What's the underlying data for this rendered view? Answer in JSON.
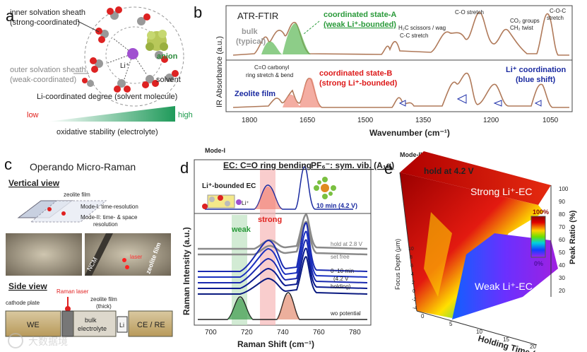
{
  "panel_a": {
    "label": "a",
    "inner_sheath_l1": "inner solvation sheath",
    "inner_sheath_l2": "(strong-coordinated)",
    "outer_sheath_l1": "outer solvation sheath",
    "outer_sheath_l2": "(weak-coordinated)",
    "anion": "anion",
    "li_ion": "Li⁺",
    "solvent": "solvent",
    "coord_degree": "Li-coordinated degree (solvent molecule)",
    "low": "low",
    "high": "high",
    "oxidative": "oxidative stability (electrolyte)",
    "colors": {
      "low": "#e0201c",
      "high": "#1a9a4a"
    }
  },
  "panel_b": {
    "label": "b",
    "title": "ATR-FTIR",
    "bulk_l1": "bulk",
    "bulk_l2": "(typical)",
    "state_a_l1": "coordinated state-A",
    "state_a_l2": "(weak Li⁺-bounded)",
    "state_b_l1": "coordinated state-B",
    "state_b_l2": "(strong Li⁺-bounded)",
    "co_carbonyl_l1": "C=O carbonyl",
    "co_carbonyl_l2": "ring stretch & bend",
    "h2c_l1": "H₂C scissors / wag",
    "h2c_l2": "C-C stretch",
    "co_stretch": "C-O stretch",
    "co2_l1": "CO₂ groups",
    "co2_l2": "CH₂ twist",
    "coc_l1": "C-O-C",
    "coc_l2": "stretch",
    "li_coord_l1": "Li⁺ coordination",
    "li_coord_l2": "(blue shift)",
    "zeolite_film": "Zeolite film",
    "ylabel": "IR Absorbance (a.u.)",
    "xlabel": "Wavenumber (cm⁻¹)",
    "ticks": [
      "1800",
      "1650",
      "1500",
      "1350",
      "1200",
      "1050"
    ]
  },
  "panel_c": {
    "label": "c",
    "title": "Operando Micro-Raman",
    "vertical_view": "Vertical view",
    "zeolite_film": "zeolite film",
    "cathode": "cathode",
    "mode1": "Mode-I: time-resolution",
    "mode2_l1": "Mode-II: time- & space",
    "mode2_l2": "resolution",
    "ncm": "NCM",
    "laser": "laser",
    "zeolite_film_photo": "zeolite film",
    "side_view": "Side view",
    "raman_laser": "Raman laser",
    "cathode_plate": "cathode plate",
    "zeolite_thick_l1": "zeolite film",
    "zeolite_thick_l2": "(thick)",
    "we": "WE",
    "bulk_l1": "bulk",
    "bulk_l2": "electrolyte",
    "li": "Li",
    "ce_re": "CE / RE"
  },
  "panel_d": {
    "label": "d",
    "mode": "Mode-I",
    "ec_header": "EC: C=O ring bending",
    "pf6_header": "PF₆⁻: sym. vib. (A₁g)",
    "li_bounded": "Li⁺-bounded EC",
    "li_label": "Li⁺",
    "strong": "strong",
    "weak": "weak",
    "t10": "10 min (4.2 V)",
    "hold28": "hold at 2.8 V",
    "setfree": "set free",
    "hold_l1": "0~10 min",
    "hold_l2": "(4.2 V",
    "hold_l3": "holding)",
    "wopotential": "wo potential",
    "ylabel": "Raman Intensity (a.u.)",
    "xlabel": "Raman Shift (cm⁻¹)",
    "ticks": [
      "700",
      "720",
      "740",
      "760",
      "780"
    ]
  },
  "panel_e": {
    "label": "e",
    "mode": "Mode-II",
    "hold": "hold at 4.2 V",
    "strong": "Strong Li⁺-EC",
    "weak": "Weak Li⁺-EC",
    "scale_top": "100%",
    "scale_bottom": "0%",
    "zlabel": "Peak Ratio (%)",
    "zticks": [
      "100",
      "90",
      "80",
      "70",
      "60",
      "50",
      "40",
      "30",
      "20"
    ],
    "ylabel": "Focus Depth (μm)",
    "yticks": [
      "10",
      "8",
      "6",
      "4",
      "2",
      "0",
      "-2",
      "-4"
    ],
    "xlabel": "Holding Time (min)",
    "xticks": [
      "0",
      "5",
      "10",
      "15",
      "20"
    ]
  },
  "watermark": "大数据境"
}
